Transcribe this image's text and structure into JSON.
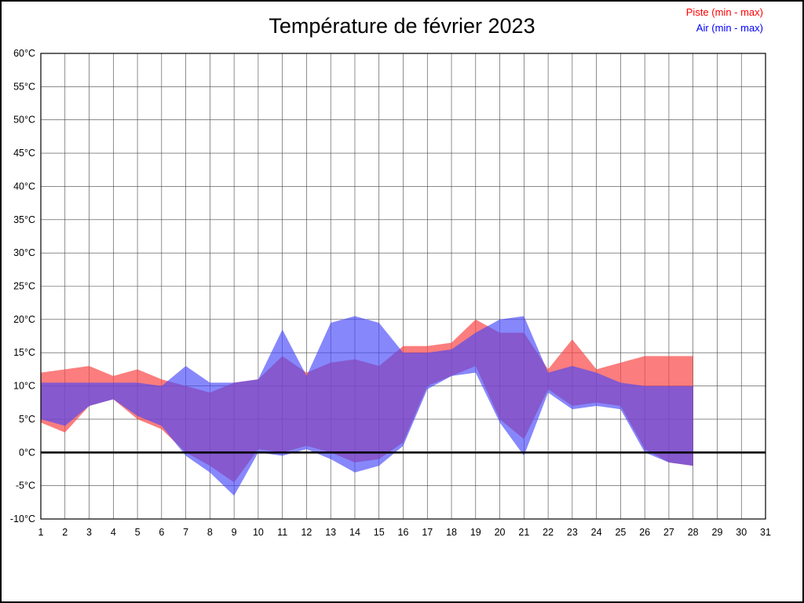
{
  "title": "Température de février 2023",
  "legend": {
    "piste_label": "Piste (min - max)",
    "air_label": "Air (min - max)"
  },
  "colors": {
    "piste_text": "#ff0000",
    "air_text": "#0000ff",
    "piste_fill": "#fa4646",
    "air_fill": "#4646fa",
    "grid": "#444444",
    "zero_line": "#000000",
    "border": "#000000"
  },
  "chart_data": {
    "type": "area",
    "title": "Température de février 2023",
    "xlabel": "",
    "ylabel": "",
    "xlim": [
      1,
      31
    ],
    "ylim": [
      -10,
      60
    ],
    "ytick_step": 5,
    "grid": true,
    "legend_position": "top-right",
    "x": [
      1,
      2,
      3,
      4,
      5,
      6,
      7,
      8,
      9,
      10,
      11,
      12,
      13,
      14,
      15,
      16,
      17,
      18,
      19,
      20,
      21,
      22,
      23,
      24,
      25,
      26,
      27,
      28
    ],
    "x_tick_labels": [
      "1",
      "2",
      "3",
      "4",
      "5",
      "6",
      "7",
      "8",
      "9",
      "10",
      "11",
      "12",
      "13",
      "14",
      "15",
      "16",
      "17",
      "18",
      "19",
      "20",
      "21",
      "22",
      "23",
      "24",
      "25",
      "26",
      "27",
      "28",
      "29",
      "30",
      "31"
    ],
    "y_tick_values": [
      60,
      55,
      50,
      45,
      40,
      35,
      30,
      25,
      20,
      15,
      10,
      5,
      0,
      -5,
      -10
    ],
    "y_tick_labels": [
      "60°C",
      "55°C",
      "50°C",
      "45°C",
      "40°C",
      "35°C",
      "30°C",
      "25°C",
      "20°C",
      "15°C",
      "10°C",
      "5°C",
      "0°C",
      "-5°C",
      "-10°C"
    ],
    "series": [
      {
        "name": "Piste (min - max)",
        "color_key": "piste_fill",
        "opacity": 0.7,
        "max": [
          12,
          12.5,
          13,
          11.5,
          12.5,
          11,
          10,
          9,
          10.5,
          11,
          14.5,
          12,
          13.5,
          14,
          13,
          16,
          16,
          16.5,
          20,
          18,
          18,
          12.5,
          17,
          12.5,
          13.5,
          14.5,
          14.5,
          14.5
        ],
        "min": [
          4.5,
          3,
          7,
          8,
          5,
          3.5,
          0,
          -2,
          -4.5,
          0.5,
          0,
          1,
          0,
          -1.5,
          -1,
          1.5,
          10,
          11.5,
          13,
          5,
          2,
          9.5,
          7,
          7.5,
          7,
          0.5,
          -1.5,
          -2
        ]
      },
      {
        "name": "Air (min - max)",
        "color_key": "air_fill",
        "opacity": 0.65,
        "max": [
          10.5,
          10.5,
          10.5,
          10.5,
          10.5,
          10,
          13,
          10.5,
          10.5,
          11,
          18.5,
          11.5,
          19.5,
          20.5,
          19.5,
          15,
          15,
          15.5,
          18,
          20,
          20.5,
          12,
          13,
          12,
          10.5,
          10,
          10,
          10
        ],
        "min": [
          5,
          4,
          7,
          8,
          5.5,
          4,
          -0.5,
          -3,
          -6.5,
          0,
          -0.5,
          0.5,
          -1,
          -3,
          -2,
          1,
          9.5,
          11.5,
          12,
          4.5,
          -0.5,
          9,
          6.5,
          7,
          6.5,
          0,
          -1.5,
          -2
        ]
      }
    ]
  }
}
